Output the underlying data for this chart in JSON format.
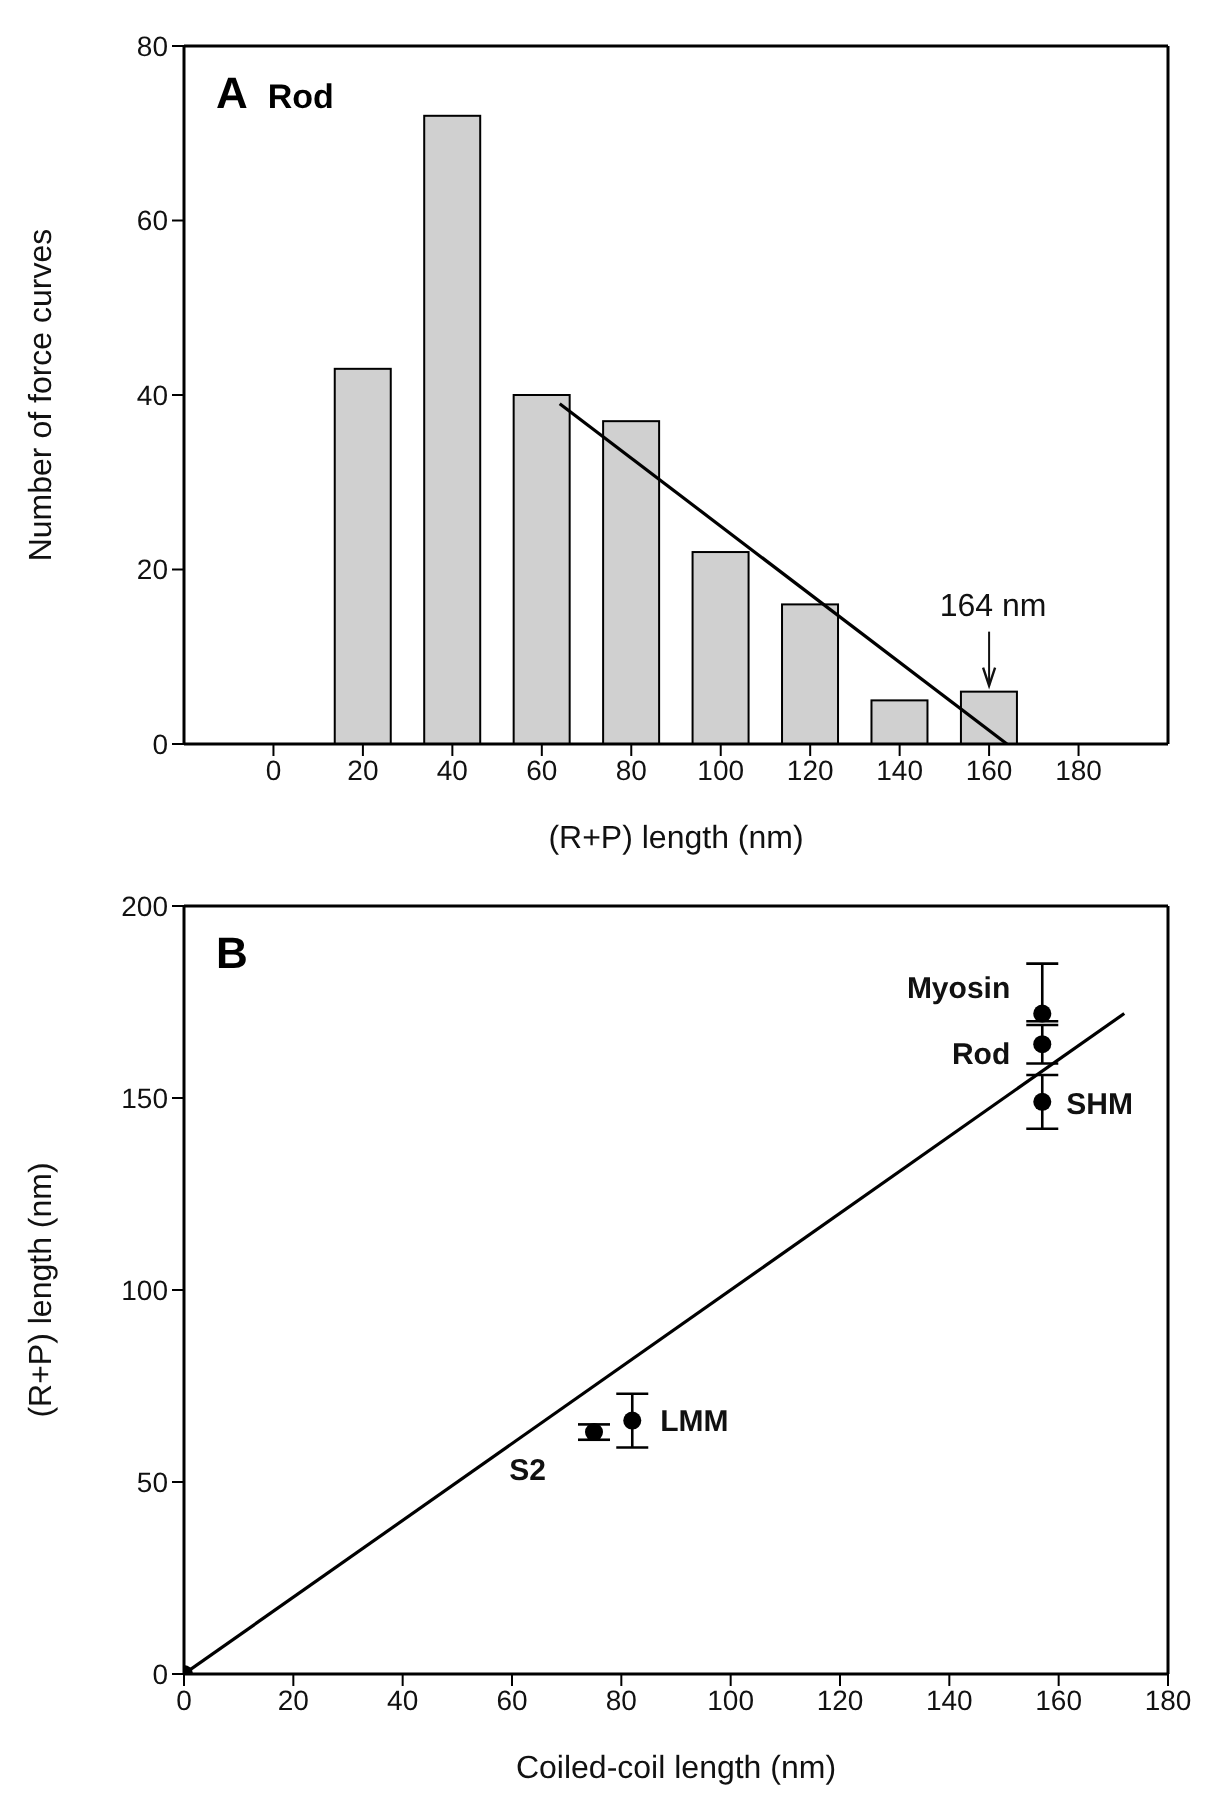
{
  "chart_data": [
    {
      "type": "bar",
      "title": "Rod",
      "annotations": [
        "A",
        {
          "text": "164 nm",
          "x": 160,
          "y": 6
        }
      ],
      "xlabel": "(R+P) length (nm)",
      "ylabel": "Number of force curves",
      "x": [
        20,
        40,
        60,
        80,
        100,
        120,
        140,
        160
      ],
      "xlim": [
        -20,
        200
      ],
      "xticks": [
        0,
        20,
        40,
        60,
        80,
        100,
        120,
        140,
        160,
        180
      ],
      "ylim": [
        0,
        80
      ],
      "yticks": [
        0,
        20,
        40,
        60,
        80
      ],
      "grid": false,
      "legend": false,
      "series": [
        {
          "color": "#d0d0d0",
          "values": [
            43,
            72,
            40,
            37,
            22,
            16,
            5,
            6
          ]
        },
        {
          "type": "line",
          "color": "#000000",
          "x": [
            64,
            164
          ],
          "values": [
            39,
            0
          ]
        }
      ]
    },
    {
      "type": "scatter",
      "annotations": [
        "B",
        {
          "text": "Myosin",
          "x": 157,
          "y": 172
        },
        {
          "text": "Rod",
          "x": 157,
          "y": 164
        },
        {
          "text": "SHM",
          "x": 157,
          "y": 149
        },
        {
          "text": "LMM",
          "x": 82,
          "y": 66
        },
        {
          "text": "S2",
          "x": 75,
          "y": 63
        }
      ],
      "xlabel": "Coiled-coil length (nm)",
      "ylabel": "(R+P) length (nm)",
      "xlim": [
        0,
        180
      ],
      "xticks": [
        0,
        20,
        40,
        60,
        80,
        100,
        120,
        140,
        160,
        180
      ],
      "ylim": [
        0,
        200
      ],
      "yticks": [
        0,
        50,
        100,
        150,
        200
      ],
      "grid": false,
      "legend": false,
      "series": [
        {
          "marker": "circle",
          "color": "#000000",
          "x": [
            0,
            75,
            82,
            157,
            157,
            157
          ],
          "values": [
            0,
            63,
            66,
            172,
            164,
            149
          ],
          "errors": [
            null,
            2,
            7,
            [
              170,
              185
            ],
            [
              159,
              169
            ],
            [
              142,
              156
            ]
          ]
        },
        {
          "type": "line",
          "marker": "none",
          "color": "#000000",
          "x": [
            0,
            172
          ],
          "values": [
            0,
            172
          ]
        }
      ]
    }
  ]
}
